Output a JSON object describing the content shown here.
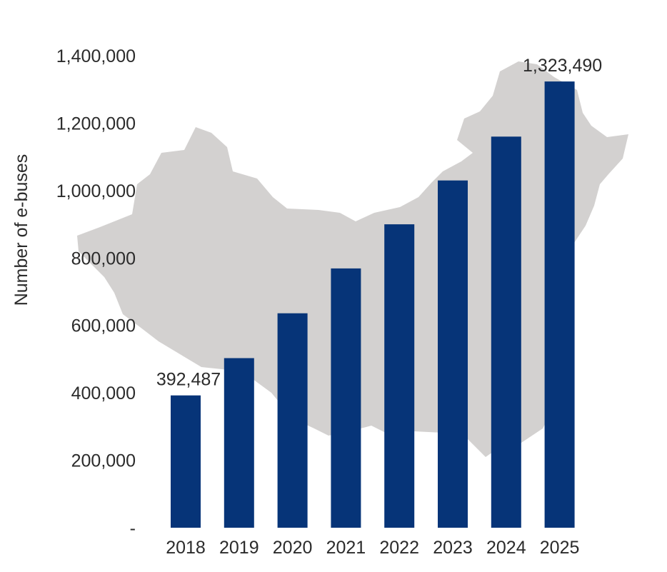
{
  "chart_data": {
    "type": "bar",
    "title": "",
    "xlabel": "",
    "ylabel": "Number of e-buses",
    "categories": [
      "2018",
      "2019",
      "2020",
      "2021",
      "2022",
      "2023",
      "2024",
      "2025"
    ],
    "values": [
      392487,
      503000,
      636000,
      769000,
      900000,
      1030000,
      1160000,
      1323490
    ],
    "data_labels": [
      {
        "category": "2018",
        "text": "392,487"
      },
      {
        "category": "2025",
        "text": "1,323,490"
      }
    ],
    "ylim": [
      0,
      1400000
    ],
    "yticks": [
      0,
      200000,
      400000,
      600000,
      800000,
      1000000,
      1200000,
      1400000
    ],
    "ytick_labels": [
      "-",
      "200,000",
      "400,000",
      "600,000",
      "800,000",
      "1,000,000",
      "1,200,000",
      "1,400,000"
    ],
    "grid": false,
    "legend": "none",
    "background_image": "china-map-silhouette",
    "colors": {
      "bar": "#063478",
      "map": "#d3d1d0",
      "text": "#2b2b2b"
    }
  }
}
